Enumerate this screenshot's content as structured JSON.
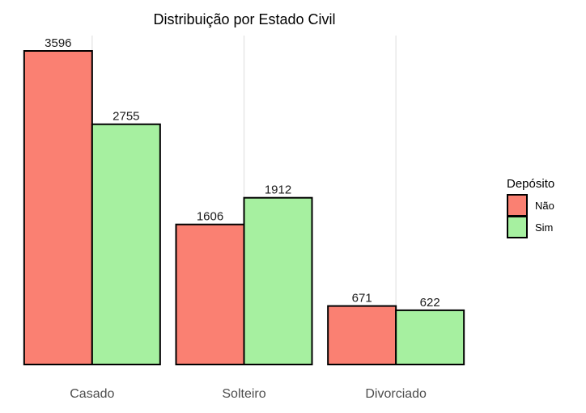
{
  "chart_data": {
    "type": "bar",
    "title": "Distribuição por Estado Civil",
    "xlabel": "",
    "ylabel": "",
    "categories": [
      "Casado",
      "Solteiro",
      "Divorciado"
    ],
    "series": [
      {
        "name": "Não",
        "values": [
          3596,
          1606,
          671
        ],
        "color": "#fa8072"
      },
      {
        "name": "Sim",
        "values": [
          2755,
          1912,
          622
        ],
        "color": "#a6f0a0"
      }
    ],
    "ylim": [
      0,
      3596
    ],
    "grid": "vertical-major-only",
    "legend": {
      "title": "Depósito",
      "position": "right"
    }
  }
}
